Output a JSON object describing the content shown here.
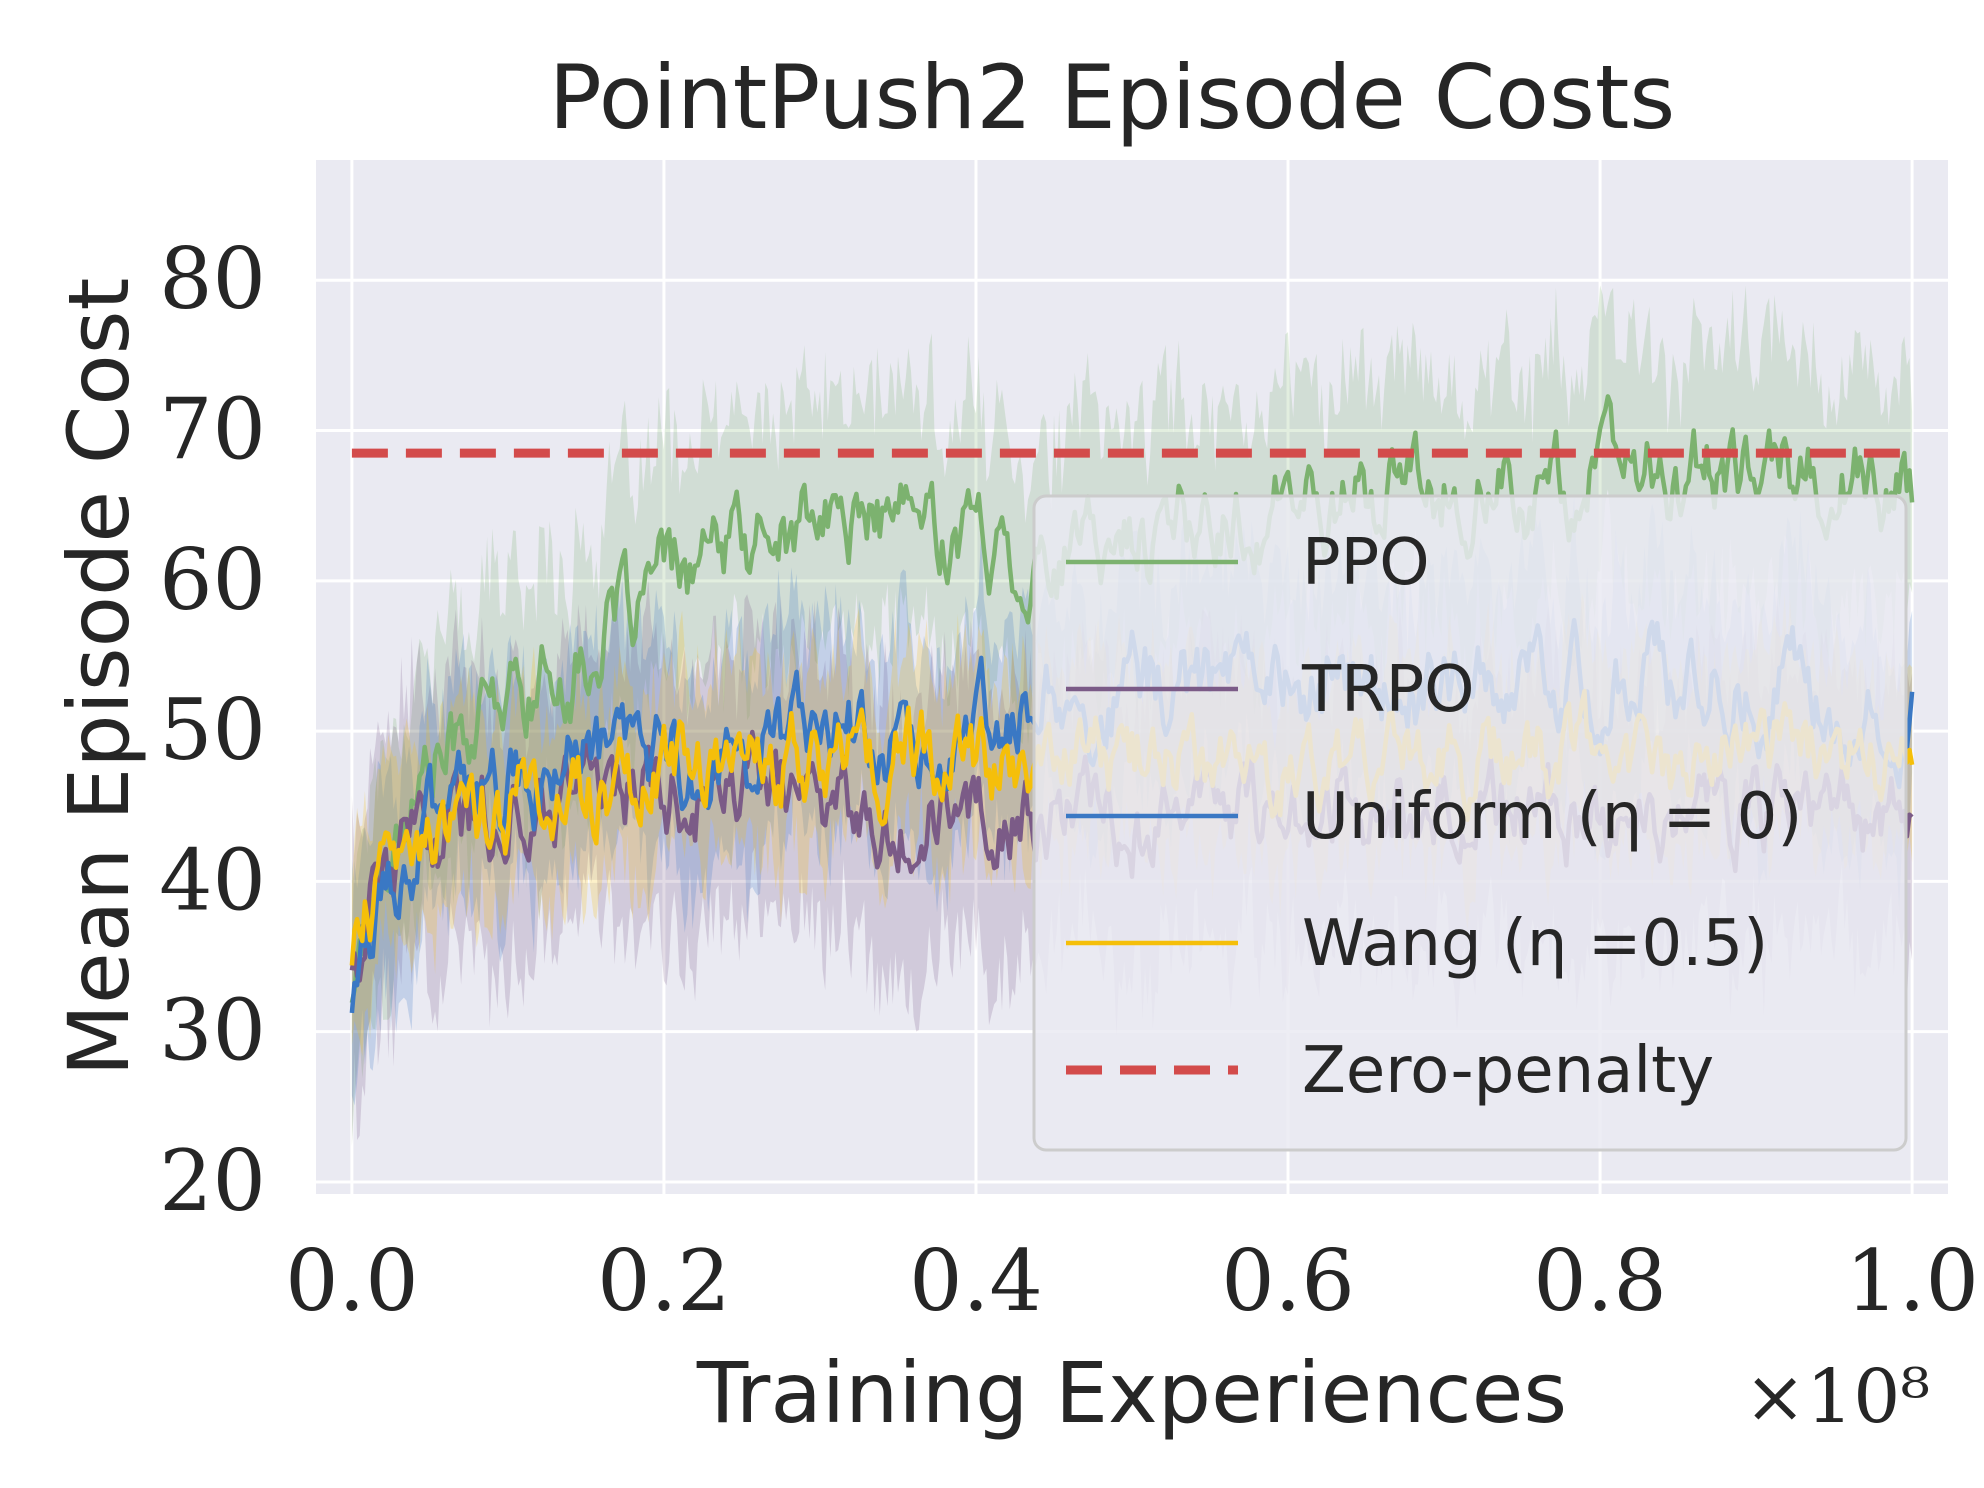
{
  "chart_data": {
    "type": "line",
    "title": "PointPush2 Episode Costs",
    "xlabel": "Training Experiences",
    "ylabel": "Mean Episode Cost",
    "x_multiplier_label": "×10⁸",
    "xlim": [
      -0.023,
      1.023
    ],
    "ylim": [
      19.2,
      88
    ],
    "x_ticks": [
      0.0,
      0.2,
      0.4,
      0.6,
      0.8,
      1.0
    ],
    "x_tick_labels": [
      "0.0",
      "0.2",
      "0.4",
      "0.6",
      "0.8",
      "1.0"
    ],
    "y_ticks": [
      20,
      30,
      40,
      50,
      60,
      70,
      80
    ],
    "y_tick_labels": [
      "20",
      "30",
      "40",
      "50",
      "60",
      "70",
      "80"
    ],
    "grid": true,
    "legend_position": "right",
    "series": [
      {
        "name": "PPO",
        "legend_label": "PPO",
        "color": "#7cb26f",
        "x": [
          0.0,
          0.02,
          0.05,
          0.1,
          0.15,
          0.2,
          0.25,
          0.3,
          0.35,
          0.4,
          0.45,
          0.5,
          0.55,
          0.6,
          0.65,
          0.7,
          0.75,
          0.8,
          0.85,
          0.9,
          0.95,
          1.0
        ],
        "values": [
          33,
          42,
          48,
          52,
          55,
          60,
          62,
          64,
          64,
          63,
          61,
          63,
          64,
          65,
          66,
          66,
          66,
          67,
          67,
          67,
          67,
          66
        ],
        "band_halfwidth": 8
      },
      {
        "name": "TRPO",
        "legend_label": "TRPO",
        "color": "#7b5b87",
        "x": [
          0.0,
          0.02,
          0.05,
          0.1,
          0.15,
          0.2,
          0.25,
          0.3,
          0.35,
          0.4,
          0.45,
          0.5,
          0.55,
          0.6,
          0.65,
          0.7,
          0.75,
          0.8,
          0.85,
          0.9,
          0.95,
          1.0
        ],
        "values": [
          35,
          40,
          43,
          45,
          47,
          46,
          46,
          46,
          45,
          45,
          44,
          44,
          45,
          44,
          45,
          44,
          45,
          44,
          45,
          45,
          44,
          44
        ],
        "band_halfwidth": 9
      },
      {
        "name": "Uniform",
        "legend_label": "Uniform (η = 0)",
        "color": "#3a78c4",
        "x": [
          0.0,
          0.02,
          0.05,
          0.1,
          0.15,
          0.2,
          0.25,
          0.3,
          0.35,
          0.4,
          0.45,
          0.5,
          0.55,
          0.6,
          0.65,
          0.7,
          0.75,
          0.8,
          0.85,
          0.9,
          0.95,
          1.0
        ],
        "values": [
          32,
          40,
          44,
          46,
          48,
          48,
          49,
          50,
          50,
          50,
          52,
          53,
          53,
          53,
          53,
          53,
          53,
          53,
          53,
          53,
          53,
          52
        ],
        "band_halfwidth": 7
      },
      {
        "name": "Wang",
        "legend_label": "Wang (η =0.5)",
        "color": "#f5bf0a",
        "x": [
          0.0,
          0.02,
          0.05,
          0.1,
          0.15,
          0.2,
          0.25,
          0.3,
          0.35,
          0.4,
          0.45,
          0.5,
          0.55,
          0.6,
          0.65,
          0.7,
          0.75,
          0.8,
          0.85,
          0.9,
          0.95,
          1.0
        ],
        "values": [
          35,
          40,
          44,
          45,
          46,
          47,
          48,
          48,
          48,
          48,
          48,
          48,
          48,
          48,
          48,
          48,
          48,
          48,
          48,
          48,
          48,
          48
        ],
        "band_halfwidth": 6
      },
      {
        "name": "Zero-penalty",
        "legend_label": "Zero-penalty",
        "color": "#d34b4b",
        "dashed": true,
        "x": [
          0.0,
          1.0
        ],
        "values": [
          68.5,
          68.5
        ]
      }
    ]
  }
}
